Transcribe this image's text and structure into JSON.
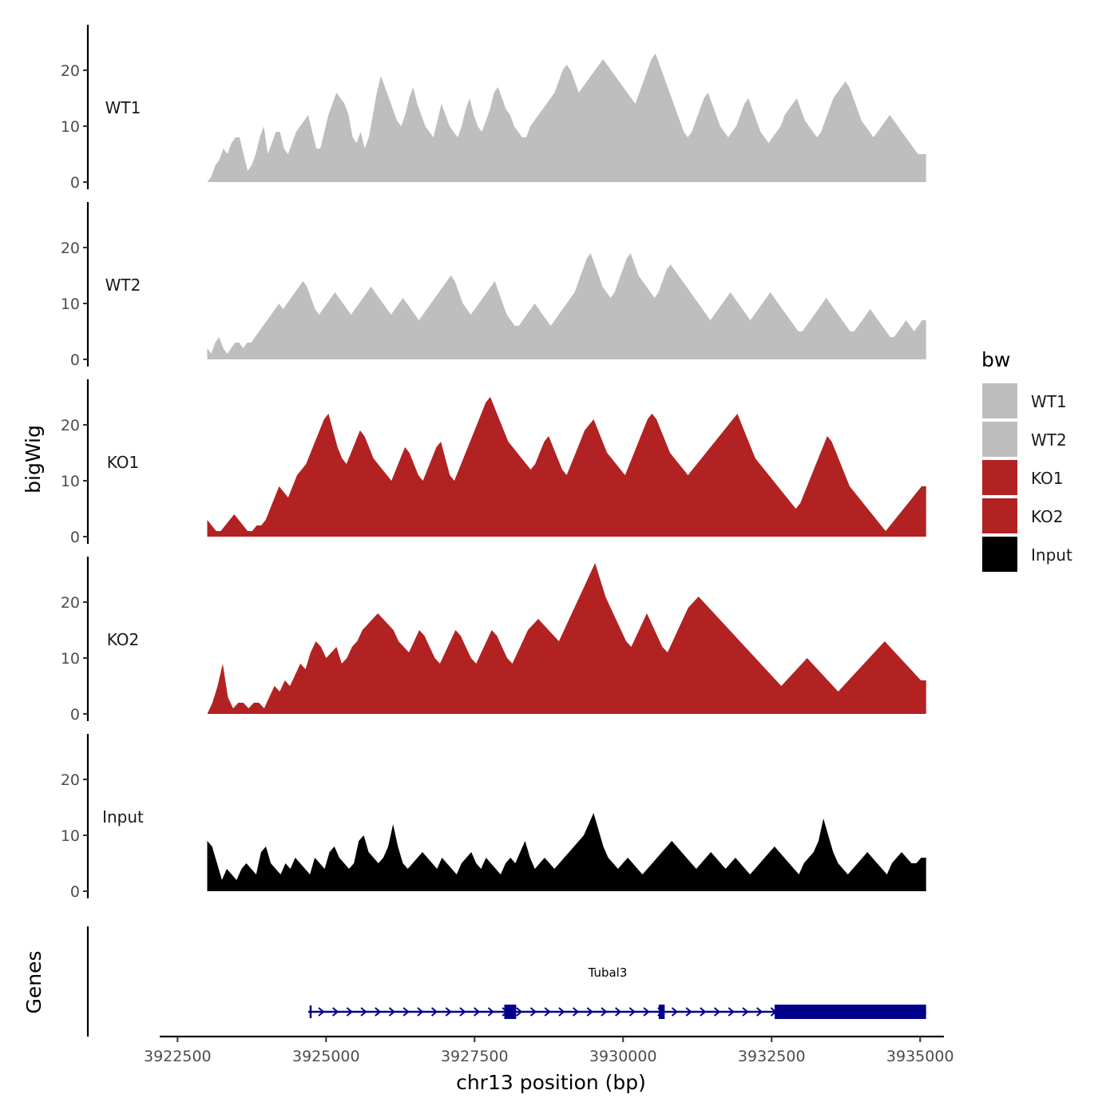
{
  "chart_data": {
    "type": "area",
    "y_axis_title": "bigWig",
    "x_axis_title": "chr13 position (bp)",
    "gene_axis_title": "Genes",
    "x_range": [
      3922200,
      3935400
    ],
    "x_tick_values": [
      3922500,
      3925000,
      3927500,
      3930000,
      3932500,
      3935000
    ],
    "x_tick_labels": [
      "3922500",
      "3925000",
      "3927500",
      "3930000",
      "3932500",
      "3935000"
    ],
    "y_range": [
      0,
      28
    ],
    "y_tick_values": [
      0,
      10,
      20
    ],
    "y_tick_labels": [
      "0",
      "10",
      "20"
    ],
    "track_x_start": 3923000,
    "track_x_end": 3935100,
    "tracks": [
      {
        "name": "WT1",
        "color": "#bebebe",
        "values": [
          0,
          1,
          3,
          4,
          6,
          5,
          7,
          8,
          8,
          5,
          2,
          3,
          5,
          8,
          10,
          5,
          7,
          9,
          9,
          6,
          5,
          7,
          9,
          10,
          11,
          12,
          9,
          6,
          6,
          9,
          12,
          14,
          16,
          15,
          14,
          12,
          8,
          7,
          9,
          6,
          8,
          12,
          16,
          19,
          17,
          15,
          13,
          11,
          10,
          12,
          15,
          17,
          14,
          12,
          10,
          9,
          8,
          11,
          14,
          12,
          10,
          9,
          8,
          10,
          13,
          15,
          12,
          10,
          9,
          11,
          13,
          16,
          17,
          15,
          13,
          12,
          10,
          9,
          8,
          8,
          10,
          11,
          12,
          13,
          14,
          15,
          16,
          18,
          20,
          21,
          20,
          18,
          16,
          17,
          18,
          19,
          20,
          21,
          22,
          21,
          20,
          19,
          18,
          17,
          16,
          15,
          14,
          16,
          18,
          20,
          22,
          23,
          21,
          19,
          17,
          15,
          13,
          11,
          9,
          8,
          9,
          11,
          13,
          15,
          16,
          14,
          12,
          10,
          9,
          8,
          9,
          10,
          12,
          14,
          15,
          13,
          11,
          9,
          8,
          7,
          8,
          9,
          10,
          12,
          13,
          14,
          15,
          13,
          11,
          10,
          9,
          8,
          9,
          11,
          13,
          15,
          16,
          17,
          18,
          17,
          15,
          13,
          11,
          10,
          9,
          8,
          9,
          10,
          11,
          12,
          11,
          10,
          9,
          8,
          7,
          6,
          5,
          5,
          5
        ]
      },
      {
        "name": "WT2",
        "color": "#bebebe",
        "values": [
          2,
          1,
          3,
          4,
          2,
          1,
          2,
          3,
          3,
          2,
          3,
          3,
          4,
          5,
          6,
          7,
          8,
          9,
          10,
          9,
          10,
          11,
          12,
          13,
          14,
          13,
          11,
          9,
          8,
          9,
          10,
          11,
          12,
          11,
          10,
          9,
          8,
          9,
          10,
          11,
          12,
          13,
          12,
          11,
          10,
          9,
          8,
          9,
          10,
          11,
          10,
          9,
          8,
          7,
          8,
          9,
          10,
          11,
          12,
          13,
          14,
          15,
          14,
          12,
          10,
          9,
          8,
          9,
          10,
          11,
          12,
          13,
          14,
          12,
          10,
          8,
          7,
          6,
          6,
          7,
          8,
          9,
          10,
          9,
          8,
          7,
          6,
          7,
          8,
          9,
          10,
          11,
          12,
          14,
          16,
          18,
          19,
          17,
          15,
          13,
          12,
          11,
          12,
          14,
          16,
          18,
          19,
          17,
          15,
          14,
          13,
          12,
          11,
          12,
          14,
          16,
          17,
          16,
          15,
          14,
          13,
          12,
          11,
          10,
          9,
          8,
          7,
          8,
          9,
          10,
          11,
          12,
          11,
          10,
          9,
          8,
          7,
          8,
          9,
          10,
          11,
          12,
          11,
          10,
          9,
          8,
          7,
          6,
          5,
          5,
          6,
          7,
          8,
          9,
          10,
          11,
          10,
          9,
          8,
          7,
          6,
          5,
          5,
          6,
          7,
          8,
          9,
          8,
          7,
          6,
          5,
          4,
          4,
          5,
          6,
          7,
          6,
          5,
          6,
          7,
          7
        ]
      },
      {
        "name": "KO1",
        "color": "#b22222",
        "values": [
          3,
          2,
          1,
          1,
          2,
          3,
          4,
          3,
          2,
          1,
          1,
          2,
          2,
          3,
          5,
          7,
          9,
          8,
          7,
          9,
          11,
          12,
          13,
          15,
          17,
          19,
          21,
          22,
          19,
          16,
          14,
          13,
          15,
          17,
          19,
          18,
          16,
          14,
          13,
          12,
          11,
          10,
          12,
          14,
          16,
          15,
          13,
          11,
          10,
          12,
          14,
          16,
          17,
          14,
          11,
          10,
          12,
          14,
          16,
          18,
          20,
          22,
          24,
          25,
          23,
          21,
          19,
          17,
          16,
          15,
          14,
          13,
          12,
          13,
          15,
          17,
          18,
          16,
          14,
          12,
          11,
          13,
          15,
          17,
          19,
          20,
          21,
          19,
          17,
          15,
          14,
          13,
          12,
          11,
          13,
          15,
          17,
          19,
          21,
          22,
          21,
          19,
          17,
          15,
          14,
          13,
          12,
          11,
          12,
          13,
          14,
          15,
          16,
          17,
          18,
          19,
          20,
          21,
          22,
          20,
          18,
          16,
          14,
          13,
          12,
          11,
          10,
          9,
          8,
          7,
          6,
          5,
          6,
          8,
          10,
          12,
          14,
          16,
          18,
          17,
          15,
          13,
          11,
          9,
          8,
          7,
          6,
          5,
          4,
          3,
          2,
          1,
          2,
          3,
          4,
          5,
          6,
          7,
          8,
          9,
          9
        ]
      },
      {
        "name": "KO2",
        "color": "#b22222",
        "values": [
          0,
          2,
          5,
          9,
          3,
          1,
          2,
          2,
          1,
          2,
          2,
          1,
          3,
          5,
          4,
          6,
          5,
          7,
          9,
          8,
          11,
          13,
          12,
          10,
          11,
          12,
          9,
          10,
          12,
          13,
          15,
          16,
          17,
          18,
          17,
          16,
          15,
          13,
          12,
          11,
          13,
          15,
          14,
          12,
          10,
          9,
          11,
          13,
          15,
          14,
          12,
          10,
          9,
          11,
          13,
          15,
          14,
          12,
          10,
          9,
          11,
          13,
          15,
          16,
          17,
          16,
          15,
          14,
          13,
          15,
          17,
          19,
          21,
          23,
          25,
          27,
          24,
          21,
          19,
          17,
          15,
          13,
          12,
          14,
          16,
          18,
          16,
          14,
          12,
          11,
          13,
          15,
          17,
          19,
          20,
          21,
          20,
          19,
          18,
          17,
          16,
          15,
          14,
          13,
          12,
          11,
          10,
          9,
          8,
          7,
          6,
          5,
          6,
          7,
          8,
          9,
          10,
          9,
          8,
          7,
          6,
          5,
          4,
          5,
          6,
          7,
          8,
          9,
          10,
          11,
          12,
          13,
          12,
          11,
          10,
          9,
          8,
          7,
          6,
          6
        ]
      },
      {
        "name": "Input",
        "color": "#000000",
        "values": [
          9,
          8,
          5,
          2,
          4,
          3,
          2,
          4,
          5,
          4,
          3,
          7,
          8,
          5,
          4,
          3,
          5,
          4,
          6,
          5,
          4,
          3,
          6,
          5,
          4,
          7,
          8,
          6,
          5,
          4,
          5,
          9,
          10,
          7,
          6,
          5,
          6,
          8,
          12,
          8,
          5,
          4,
          5,
          6,
          7,
          6,
          5,
          4,
          6,
          5,
          4,
          3,
          5,
          6,
          7,
          5,
          4,
          6,
          5,
          4,
          3,
          5,
          6,
          5,
          7,
          9,
          6,
          4,
          5,
          6,
          5,
          4,
          5,
          6,
          7,
          8,
          9,
          10,
          12,
          14,
          11,
          8,
          6,
          5,
          4,
          5,
          6,
          5,
          4,
          3,
          4,
          5,
          6,
          7,
          8,
          9,
          8,
          7,
          6,
          5,
          4,
          5,
          6,
          7,
          6,
          5,
          4,
          5,
          6,
          5,
          4,
          3,
          4,
          5,
          6,
          7,
          8,
          7,
          6,
          5,
          4,
          3,
          5,
          6,
          7,
          9,
          13,
          10,
          7,
          5,
          4,
          3,
          4,
          5,
          6,
          7,
          6,
          5,
          4,
          3,
          5,
          6,
          7,
          6,
          5,
          5,
          6,
          6
        ]
      }
    ],
    "legend": {
      "title": "bw",
      "entries": [
        {
          "label": "WT1",
          "color": "#bebebe"
        },
        {
          "label": "WT2",
          "color": "#bebebe"
        },
        {
          "label": "KO1",
          "color": "#b22222"
        },
        {
          "label": "KO2",
          "color": "#b22222"
        },
        {
          "label": "Input",
          "color": "#000000"
        }
      ]
    },
    "gene": {
      "name": "Tubal3",
      "color": "#00008b",
      "start": 3924700,
      "end": 3935100,
      "exons": [
        [
          3928000,
          3928200
        ],
        [
          3930600,
          3930700
        ],
        [
          3932550,
          3935100
        ]
      ]
    }
  }
}
